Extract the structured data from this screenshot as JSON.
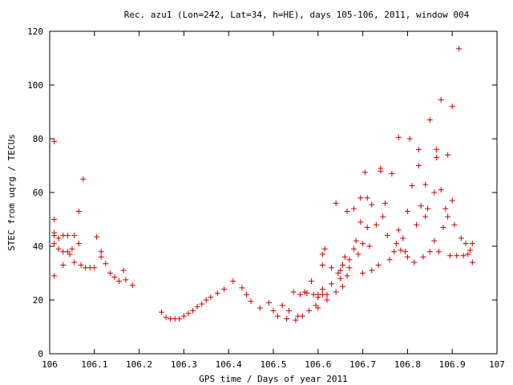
{
  "chart_data": {
    "type": "scatter",
    "title": "Rec. azu1 (Lon=242, Lat=34, h=HE), days 105-106, 2011, window 004",
    "xlabel": "GPS time / Days of year 2011",
    "ylabel": "STEC from uqrg / TECUs",
    "xlim": [
      106,
      107
    ],
    "ylim": [
      0,
      120
    ],
    "xticks": [
      106,
      106.1,
      106.2,
      106.3,
      106.4,
      106.5,
      106.6,
      106.7,
      106.8,
      106.9,
      107
    ],
    "xtick_labels": [
      "106",
      "106.1",
      "106.2",
      "106.3",
      "106.4",
      "106.5",
      "106.6",
      "106.7",
      "106.8",
      "106.9",
      "107"
    ],
    "yticks": [
      0,
      20,
      40,
      60,
      80,
      100,
      120
    ],
    "ytick_labels": [
      "0",
      "20",
      "40",
      "60",
      "80",
      "100",
      "120"
    ],
    "grid": false,
    "legend": "none",
    "marker": "+",
    "marker_color": "#cc0000",
    "points": [
      [
        106.01,
        79
      ],
      [
        106.01,
        50
      ],
      [
        106.01,
        45
      ],
      [
        106.01,
        44
      ],
      [
        106.01,
        41
      ],
      [
        106.01,
        29
      ],
      [
        106.02,
        43
      ],
      [
        106.02,
        39
      ],
      [
        106.03,
        44
      ],
      [
        106.03,
        33
      ],
      [
        106.03,
        38
      ],
      [
        106.04,
        44
      ],
      [
        106.04,
        38
      ],
      [
        106.045,
        37
      ],
      [
        106.05,
        39
      ],
      [
        106.055,
        44
      ],
      [
        106.055,
        34
      ],
      [
        106.065,
        41
      ],
      [
        106.065,
        53
      ],
      [
        106.07,
        33
      ],
      [
        106.075,
        65
      ],
      [
        106.08,
        32
      ],
      [
        106.09,
        32
      ],
      [
        106.1,
        32
      ],
      [
        106.105,
        43.5
      ],
      [
        106.115,
        38
      ],
      [
        106.115,
        36
      ],
      [
        106.125,
        33.5
      ],
      [
        106.135,
        30
      ],
      [
        106.145,
        28.5
      ],
      [
        106.155,
        27
      ],
      [
        106.165,
        31
      ],
      [
        106.17,
        27.5
      ],
      [
        106.185,
        25.5
      ],
      [
        106.25,
        15.5
      ],
      [
        106.26,
        13.5
      ],
      [
        106.27,
        13
      ],
      [
        106.28,
        13
      ],
      [
        106.29,
        13
      ],
      [
        106.3,
        14
      ],
      [
        106.31,
        15
      ],
      [
        106.32,
        16
      ],
      [
        106.33,
        17.5
      ],
      [
        106.34,
        18.5
      ],
      [
        106.35,
        20
      ],
      [
        106.36,
        21
      ],
      [
        106.375,
        22.5
      ],
      [
        106.39,
        24
      ],
      [
        106.41,
        27
      ],
      [
        106.43,
        24.5
      ],
      [
        106.44,
        22
      ],
      [
        106.45,
        19.5
      ],
      [
        106.47,
        17
      ],
      [
        106.49,
        19
      ],
      [
        106.5,
        16
      ],
      [
        106.51,
        14
      ],
      [
        106.52,
        18
      ],
      [
        106.53,
        13
      ],
      [
        106.535,
        16
      ],
      [
        106.545,
        23
      ],
      [
        106.55,
        12.5
      ],
      [
        106.555,
        14
      ],
      [
        106.56,
        22
      ],
      [
        106.565,
        14
      ],
      [
        106.57,
        23
      ],
      [
        106.575,
        22.5
      ],
      [
        106.58,
        16
      ],
      [
        106.585,
        27
      ],
      [
        106.59,
        22
      ],
      [
        106.595,
        18
      ],
      [
        106.6,
        17
      ],
      [
        106.6,
        21
      ],
      [
        106.6,
        22
      ],
      [
        106.61,
        22
      ],
      [
        106.61,
        24
      ],
      [
        106.61,
        33
      ],
      [
        106.61,
        37
      ],
      [
        106.615,
        39
      ],
      [
        106.62,
        20
      ],
      [
        106.62,
        22
      ],
      [
        106.63,
        26
      ],
      [
        106.63,
        32
      ],
      [
        106.64,
        56
      ],
      [
        106.64,
        23
      ],
      [
        106.645,
        30
      ],
      [
        106.65,
        28
      ],
      [
        106.65,
        31
      ],
      [
        106.655,
        25
      ],
      [
        106.655,
        33
      ],
      [
        106.66,
        36
      ],
      [
        106.665,
        53
      ],
      [
        106.665,
        29
      ],
      [
        106.67,
        32
      ],
      [
        106.67,
        35
      ],
      [
        106.68,
        39
      ],
      [
        106.68,
        54
      ],
      [
        106.685,
        42
      ],
      [
        106.69,
        37
      ],
      [
        106.695,
        49
      ],
      [
        106.695,
        58
      ],
      [
        106.7,
        30
      ],
      [
        106.7,
        41
      ],
      [
        106.705,
        67.5
      ],
      [
        106.71,
        47
      ],
      [
        106.71,
        58
      ],
      [
        106.715,
        40
      ],
      [
        106.72,
        31
      ],
      [
        106.72,
        55.5
      ],
      [
        106.73,
        48
      ],
      [
        106.735,
        33
      ],
      [
        106.74,
        68
      ],
      [
        106.74,
        69
      ],
      [
        106.745,
        51
      ],
      [
        106.75,
        56
      ],
      [
        106.755,
        44
      ],
      [
        106.76,
        35
      ],
      [
        106.765,
        67
      ],
      [
        106.77,
        38
      ],
      [
        106.775,
        41
      ],
      [
        106.78,
        80.5
      ],
      [
        106.78,
        46
      ],
      [
        106.785,
        38.5
      ],
      [
        106.79,
        43
      ],
      [
        106.795,
        38
      ],
      [
        106.8,
        53
      ],
      [
        106.8,
        36
      ],
      [
        106.805,
        80
      ],
      [
        106.81,
        62.5
      ],
      [
        106.815,
        34
      ],
      [
        106.82,
        48
      ],
      [
        106.825,
        70
      ],
      [
        106.825,
        76
      ],
      [
        106.83,
        55
      ],
      [
        106.835,
        36
      ],
      [
        106.84,
        63
      ],
      [
        106.84,
        51
      ],
      [
        106.845,
        54
      ],
      [
        106.85,
        87
      ],
      [
        106.85,
        38
      ],
      [
        106.86,
        60
      ],
      [
        106.86,
        42
      ],
      [
        106.865,
        76
      ],
      [
        106.865,
        73
      ],
      [
        106.87,
        38
      ],
      [
        106.875,
        94.5
      ],
      [
        106.875,
        61
      ],
      [
        106.88,
        47
      ],
      [
        106.885,
        54
      ],
      [
        106.89,
        74
      ],
      [
        106.89,
        51
      ],
      [
        106.895,
        36.5
      ],
      [
        106.9,
        92
      ],
      [
        106.9,
        57
      ],
      [
        106.905,
        48
      ],
      [
        106.91,
        36.5
      ],
      [
        106.915,
        113.5
      ],
      [
        106.92,
        43
      ],
      [
        106.925,
        36.5
      ],
      [
        106.93,
        41
      ],
      [
        106.935,
        37
      ],
      [
        106.94,
        38.5
      ],
      [
        106.945,
        41
      ],
      [
        106.945,
        34
      ]
    ]
  }
}
